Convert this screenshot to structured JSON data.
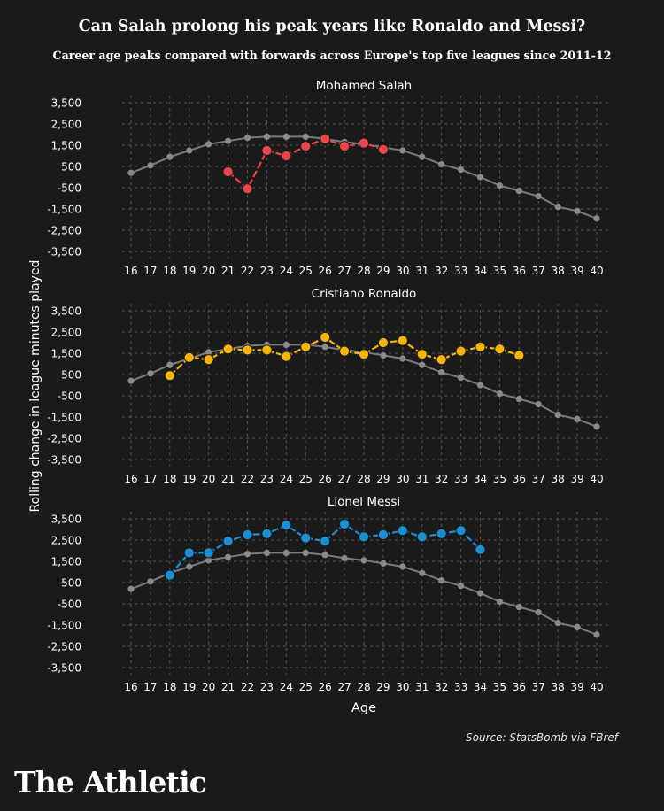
{
  "title": "Can Salah prolong his peak years like Ronaldo and Messi?",
  "subtitle": "Career age peaks compared with forwards across Europe's top five leagues since 2011-12",
  "source": "Source: StatsBomb via FBref",
  "brand": "The Athletic",
  "colors": {
    "background": "#1a1a1a",
    "baseline": "#7a7a7a",
    "salah": "#e8464b",
    "ronaldo": "#f5b40f",
    "messi": "#1b8fd2",
    "grid": "#555555"
  },
  "chart_data": [
    {
      "type": "line",
      "title": "Mohamed Salah",
      "xlabel": "Age",
      "ylabel": "Rolling change in league minutes played",
      "x": [
        16,
        17,
        18,
        19,
        20,
        21,
        22,
        23,
        24,
        25,
        26,
        27,
        28,
        29,
        30,
        31,
        32,
        33,
        34,
        35,
        36,
        37,
        38,
        39,
        40
      ],
      "yticks": [
        "3,500",
        "2,500",
        "1,500",
        "500",
        "-500",
        "-1,500",
        "-2,500",
        "-3,500"
      ],
      "ylim": [
        -3500,
        3500
      ],
      "xlim": [
        16,
        40
      ],
      "grid": true,
      "series": [
        {
          "role": "baseline",
          "color": "#7a7a7a",
          "x": [
            16,
            17,
            18,
            19,
            20,
            21,
            22,
            23,
            24,
            25,
            26,
            27,
            28,
            29,
            30,
            31,
            32,
            33,
            34,
            35,
            36,
            37,
            38,
            39,
            40
          ],
          "values": [
            200,
            550,
            950,
            1250,
            1550,
            1700,
            1850,
            1900,
            1900,
            1900,
            1800,
            1650,
            1550,
            1400,
            1250,
            950,
            600,
            350,
            0,
            -400,
            -650,
            -900,
            -1400,
            -1600,
            -1950
          ]
        },
        {
          "role": "player",
          "color": "#e8464b",
          "x": [
            21,
            22,
            23,
            24,
            25,
            26,
            27,
            28,
            29
          ],
          "values": [
            250,
            -550,
            1250,
            1000,
            1450,
            1800,
            1450,
            1600,
            1300
          ]
        }
      ]
    },
    {
      "type": "line",
      "title": "Cristiano Ronaldo",
      "xlabel": "Age",
      "ylabel": "Rolling change in league minutes played",
      "x": [
        16,
        17,
        18,
        19,
        20,
        21,
        22,
        23,
        24,
        25,
        26,
        27,
        28,
        29,
        30,
        31,
        32,
        33,
        34,
        35,
        36,
        37,
        38,
        39,
        40
      ],
      "yticks": [
        "3,500",
        "2,500",
        "1,500",
        "500",
        "-500",
        "-1,500",
        "-2,500",
        "-3,500"
      ],
      "ylim": [
        -3500,
        3500
      ],
      "xlim": [
        16,
        40
      ],
      "grid": true,
      "series": [
        {
          "role": "baseline",
          "color": "#7a7a7a",
          "x": [
            16,
            17,
            18,
            19,
            20,
            21,
            22,
            23,
            24,
            25,
            26,
            27,
            28,
            29,
            30,
            31,
            32,
            33,
            34,
            35,
            36,
            37,
            38,
            39,
            40
          ],
          "values": [
            200,
            550,
            950,
            1250,
            1550,
            1700,
            1850,
            1900,
            1900,
            1900,
            1800,
            1650,
            1550,
            1400,
            1250,
            950,
            600,
            350,
            0,
            -400,
            -650,
            -900,
            -1400,
            -1600,
            -1950
          ]
        },
        {
          "role": "player",
          "color": "#f5b40f",
          "x": [
            18,
            19,
            20,
            21,
            22,
            23,
            24,
            25,
            26,
            27,
            28,
            29,
            30,
            31,
            32,
            33,
            34,
            35,
            36
          ],
          "values": [
            450,
            1300,
            1200,
            1700,
            1650,
            1650,
            1350,
            1800,
            2250,
            1600,
            1450,
            2000,
            2100,
            1450,
            1200,
            1600,
            1800,
            1700,
            1400
          ]
        }
      ]
    },
    {
      "type": "line",
      "title": "Lionel Messi",
      "xlabel": "Age",
      "ylabel": "Rolling change in league minutes played",
      "x": [
        16,
        17,
        18,
        19,
        20,
        21,
        22,
        23,
        24,
        25,
        26,
        27,
        28,
        29,
        30,
        31,
        32,
        33,
        34,
        35,
        36,
        37,
        38,
        39,
        40
      ],
      "yticks": [
        "3,500",
        "2,500",
        "1,500",
        "500",
        "-500",
        "-1,500",
        "-2,500",
        "-3,500"
      ],
      "ylim": [
        -3500,
        3500
      ],
      "xlim": [
        16,
        40
      ],
      "grid": true,
      "series": [
        {
          "role": "baseline",
          "color": "#7a7a7a",
          "x": [
            16,
            17,
            18,
            19,
            20,
            21,
            22,
            23,
            24,
            25,
            26,
            27,
            28,
            29,
            30,
            31,
            32,
            33,
            34,
            35,
            36,
            37,
            38,
            39,
            40
          ],
          "values": [
            200,
            550,
            950,
            1250,
            1550,
            1700,
            1850,
            1900,
            1900,
            1900,
            1800,
            1650,
            1550,
            1400,
            1250,
            950,
            600,
            350,
            0,
            -400,
            -650,
            -900,
            -1400,
            -1600,
            -1950
          ]
        },
        {
          "role": "player",
          "color": "#1b8fd2",
          "x": [
            18,
            19,
            20,
            21,
            22,
            23,
            24,
            25,
            26,
            27,
            28,
            29,
            30,
            31,
            32,
            33,
            34
          ],
          "values": [
            850,
            1900,
            1900,
            2450,
            2750,
            2800,
            3200,
            2600,
            2450,
            3250,
            2650,
            2750,
            2950,
            2650,
            2800,
            2950,
            2050
          ]
        }
      ]
    }
  ]
}
